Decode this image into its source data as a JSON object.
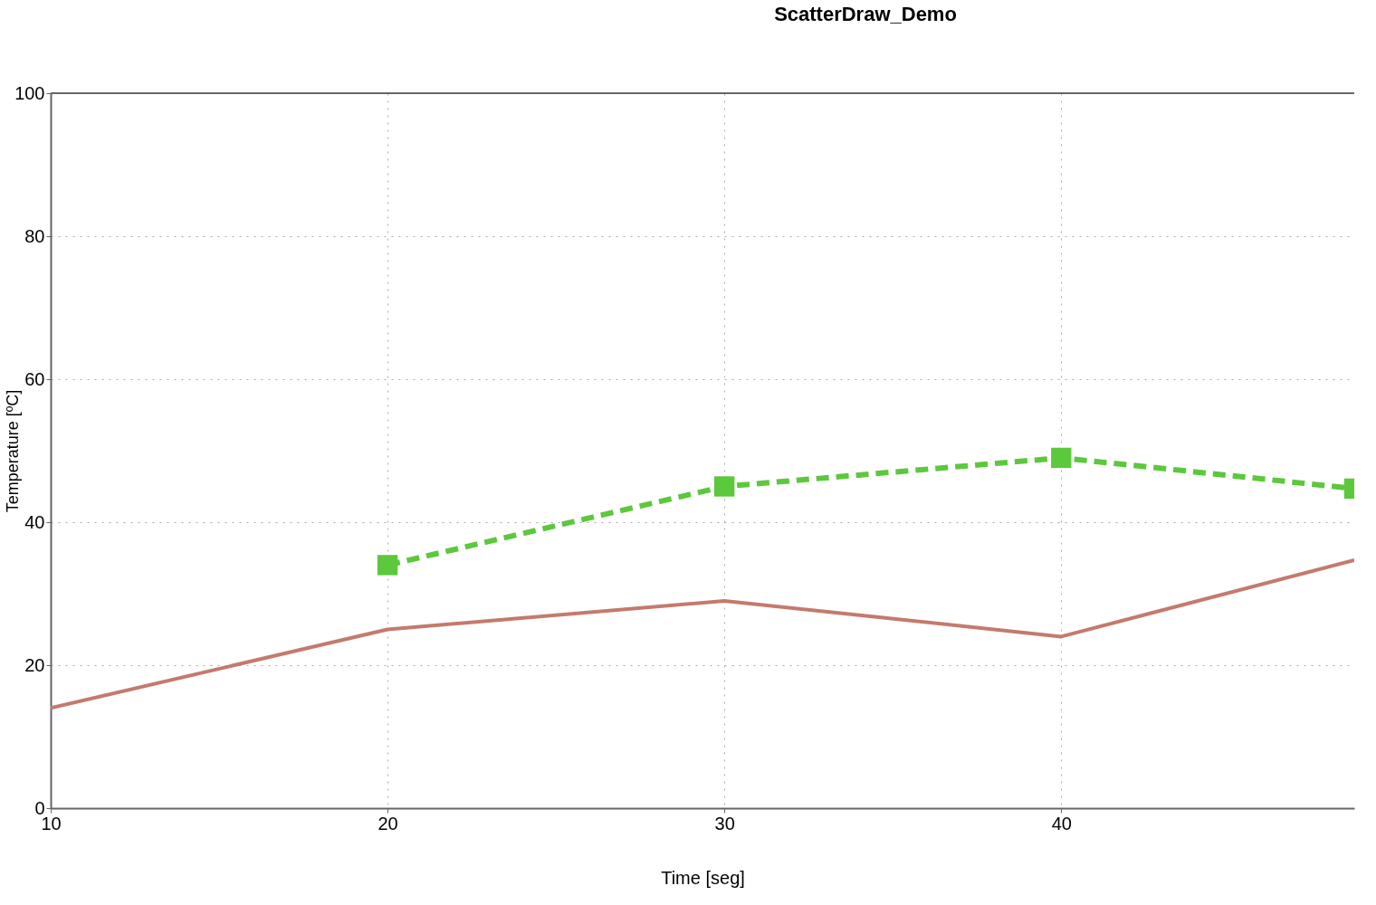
{
  "chart_data": {
    "type": "line",
    "title": "ScatterDraw_Demo",
    "xlabel": "Time [seg]",
    "ylabel": "Temperature [ºC]",
    "xlim": [
      10,
      48.7
    ],
    "xticks": [
      10,
      20,
      30,
      40
    ],
    "ylim": [
      0,
      100
    ],
    "yticks": [
      0,
      20,
      40,
      60,
      80,
      100
    ],
    "grid": true,
    "series": [
      {
        "x": [
          10,
          20,
          30,
          40,
          48.7
        ],
        "values": [
          14,
          25,
          29,
          24,
          34.7
        ],
        "color": "#c47a6e",
        "line_style": "solid",
        "marker": "none"
      },
      {
        "x": [
          20,
          30,
          40,
          48.7
        ],
        "values": [
          34,
          45,
          49,
          44.7
        ],
        "color": "#5cc83c",
        "line_style": "dashed",
        "marker": "square"
      }
    ]
  }
}
